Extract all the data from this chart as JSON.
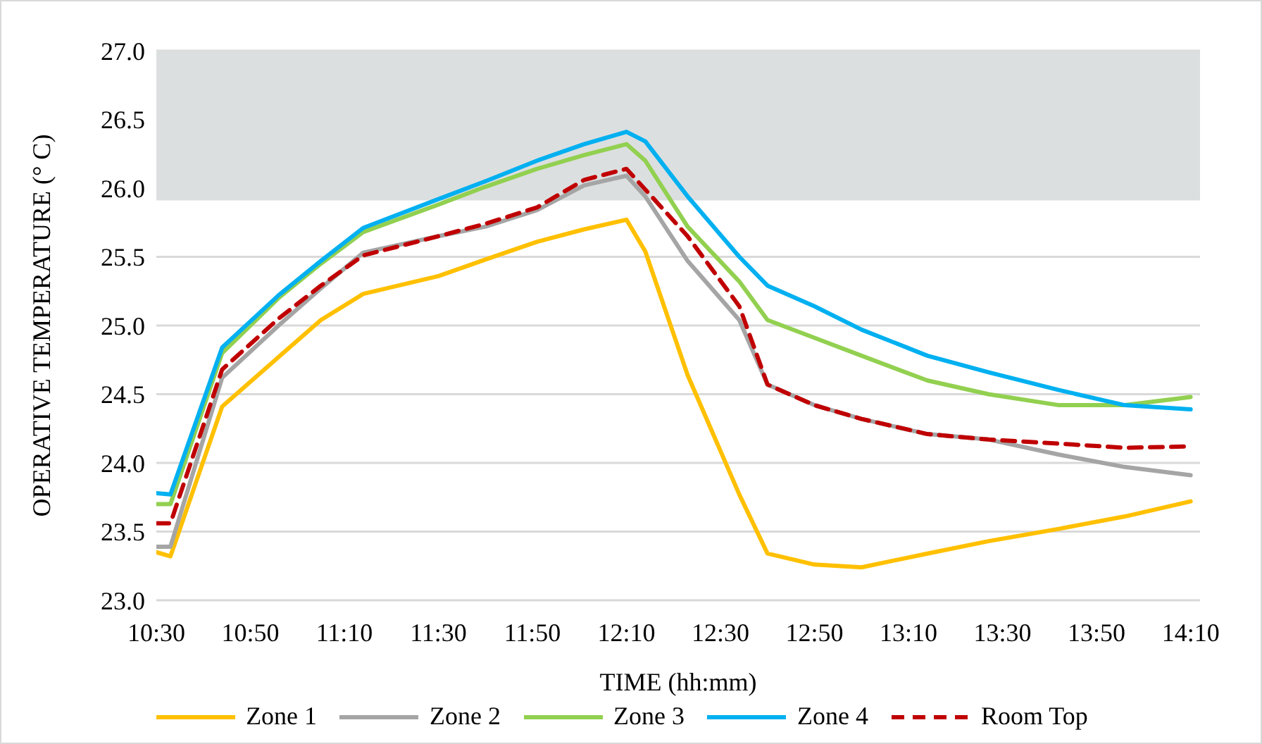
{
  "chart_data": {
    "type": "line",
    "xlabel": "TIME (hh:mm)",
    "ylabel": "OPERATIVE TEMPERATURE (° C)",
    "x": [
      10.5,
      10.55,
      10.7333,
      10.9333,
      11.0833,
      11.2333,
      11.5,
      11.6667,
      11.85,
      12.0167,
      12.1667,
      12.2333,
      12.3833,
      12.5667,
      12.6667,
      12.8333,
      13,
      13.2333,
      13.45,
      13.7,
      13.9333,
      14.1667
    ],
    "series": [
      {
        "name": "Zone 1",
        "color": "#ffc000",
        "line_style": "solid",
        "values": [
          23.35,
          23.32,
          24.41,
          24.77,
          25.04,
          25.23,
          25.36,
          25.48,
          25.61,
          25.7,
          25.77,
          25.54,
          24.64,
          23.77,
          23.34,
          23.26,
          23.24,
          23.34,
          23.43,
          23.52,
          23.61,
          23.72
        ]
      },
      {
        "name": "Zone 2",
        "color": "#a5a5a5",
        "line_style": "solid",
        "values": [
          23.39,
          23.39,
          24.62,
          25.0,
          25.27,
          25.53,
          25.65,
          25.72,
          25.84,
          26.02,
          26.09,
          25.94,
          25.47,
          25.04,
          24.57,
          24.42,
          24.32,
          24.21,
          24.17,
          24.06,
          23.97,
          23.91
        ]
      },
      {
        "name": "Zone 3",
        "color": "#92d050",
        "line_style": "solid",
        "values": [
          23.7,
          23.7,
          24.8,
          25.2,
          25.45,
          25.68,
          25.88,
          26.01,
          26.14,
          26.24,
          26.32,
          26.2,
          25.72,
          25.32,
          25.04,
          24.91,
          24.78,
          24.6,
          24.5,
          24.42,
          24.42,
          24.48
        ]
      },
      {
        "name": "Zone 4",
        "color": "#00b0f0",
        "line_style": "solid",
        "values": [
          23.78,
          23.77,
          24.84,
          25.22,
          25.47,
          25.71,
          25.92,
          26.05,
          26.2,
          26.32,
          26.41,
          26.34,
          25.94,
          25.5,
          25.29,
          25.14,
          24.97,
          24.78,
          24.66,
          24.53,
          24.42,
          24.39
        ]
      },
      {
        "name": "Room Top",
        "color": "#c00000",
        "line_style": "dashed",
        "values": [
          23.56,
          23.56,
          24.68,
          25.05,
          25.29,
          25.51,
          25.65,
          25.74,
          25.86,
          26.06,
          26.14,
          25.99,
          25.65,
          25.14,
          24.57,
          24.42,
          24.32,
          24.21,
          24.17,
          24.14,
          24.11,
          24.12
        ]
      }
    ],
    "xlim": [
      10.5,
      14.2
    ],
    "xticks": [
      {
        "value": 10.5,
        "label": "10:30"
      },
      {
        "value": 10.8333,
        "label": "10:50"
      },
      {
        "value": 11.1667,
        "label": "11:10"
      },
      {
        "value": 11.5,
        "label": "11:30"
      },
      {
        "value": 11.8333,
        "label": "11:50"
      },
      {
        "value": 12.1667,
        "label": "12:10"
      },
      {
        "value": 12.5,
        "label": "12:30"
      },
      {
        "value": 12.8333,
        "label": "12:50"
      },
      {
        "value": 13.1667,
        "label": "13:10"
      },
      {
        "value": 13.5,
        "label": "13:30"
      },
      {
        "value": 13.8333,
        "label": "13:50"
      },
      {
        "value": 14.1667,
        "label": "14:10"
      }
    ],
    "ylim": [
      23.0,
      27.0
    ],
    "yticks": [
      {
        "value": 23,
        "label": "23.0"
      },
      {
        "value": 23.5,
        "label": "23.5"
      },
      {
        "value": 24,
        "label": "24.0"
      },
      {
        "value": 24.5,
        "label": "24.5"
      },
      {
        "value": 25,
        "label": "25.0"
      },
      {
        "value": 25.5,
        "label": "25.5"
      },
      {
        "value": 26,
        "label": "26.0"
      },
      {
        "value": 26.5,
        "label": "26.5"
      },
      {
        "value": 27,
        "label": "27.0"
      }
    ],
    "bands": [
      {
        "axis": "y",
        "from": 25.91,
        "to": 27.0,
        "color": "#dcdfe0"
      }
    ],
    "grid": "y",
    "legend": "bottom",
    "marker": "none"
  }
}
